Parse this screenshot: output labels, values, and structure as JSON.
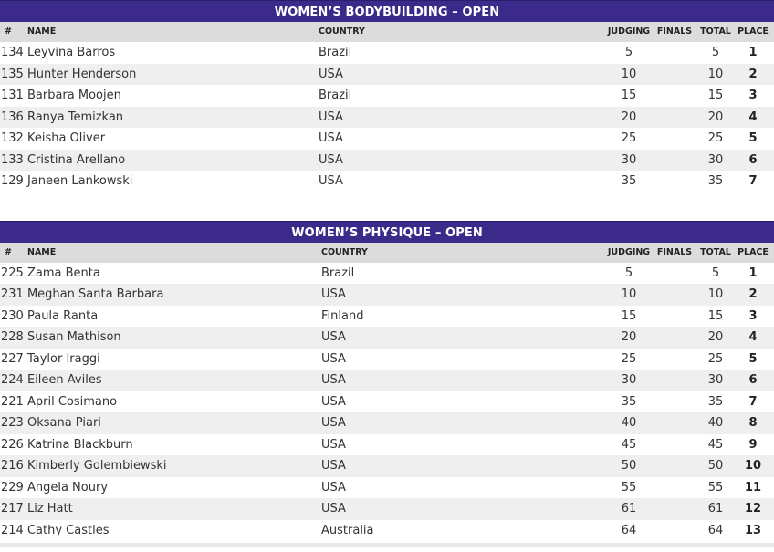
{
  "columns": {
    "num": "#",
    "name": "NAME",
    "country": "COUNTRY",
    "judging": "JUDGING",
    "finals": "FINALS",
    "total": "TOTAL",
    "place": "PLACE"
  },
  "sections": [
    {
      "title": "WOMEN’S BODYBUILDING – OPEN",
      "rows": [
        {
          "num": "134",
          "name": "Leyvina Barros",
          "country": "Brazil",
          "judging": "5",
          "finals": "",
          "total": "5",
          "place": "1"
        },
        {
          "num": "135",
          "name": "Hunter Henderson",
          "country": "USA",
          "judging": "10",
          "finals": "",
          "total": "10",
          "place": "2"
        },
        {
          "num": "131",
          "name": "Barbara Moojen",
          "country": "Brazil",
          "judging": "15",
          "finals": "",
          "total": "15",
          "place": "3"
        },
        {
          "num": "136",
          "name": "Ranya Temizkan",
          "country": "USA",
          "judging": "20",
          "finals": "",
          "total": "20",
          "place": "4"
        },
        {
          "num": "132",
          "name": "Keisha Oliver",
          "country": "USA",
          "judging": "25",
          "finals": "",
          "total": "25",
          "place": "5"
        },
        {
          "num": "133",
          "name": "Cristina Arellano",
          "country": "USA",
          "judging": "30",
          "finals": "",
          "total": "30",
          "place": "6"
        },
        {
          "num": "129",
          "name": "Janeen Lankowski",
          "country": "USA",
          "judging": "35",
          "finals": "",
          "total": "35",
          "place": "7"
        }
      ]
    },
    {
      "title": "WOMEN’S PHYSIQUE – OPEN",
      "rows": [
        {
          "num": "225",
          "name": "Zama Benta",
          "country": "Brazil",
          "judging": "5",
          "finals": "",
          "total": "5",
          "place": "1"
        },
        {
          "num": "231",
          "name": "Meghan Santa Barbara",
          "country": "USA",
          "judging": "10",
          "finals": "",
          "total": "10",
          "place": "2"
        },
        {
          "num": "230",
          "name": "Paula Ranta",
          "country": "Finland",
          "judging": "15",
          "finals": "",
          "total": "15",
          "place": "3"
        },
        {
          "num": "228",
          "name": "Susan Mathison",
          "country": "USA",
          "judging": "20",
          "finals": "",
          "total": "20",
          "place": "4"
        },
        {
          "num": "227",
          "name": "Taylor Iraggi",
          "country": "USA",
          "judging": "25",
          "finals": "",
          "total": "25",
          "place": "5"
        },
        {
          "num": "224",
          "name": "Eileen Aviles",
          "country": "USA",
          "judging": "30",
          "finals": "",
          "total": "30",
          "place": "6"
        },
        {
          "num": "221",
          "name": "April Cosimano",
          "country": "USA",
          "judging": "35",
          "finals": "",
          "total": "35",
          "place": "7"
        },
        {
          "num": "223",
          "name": "Oksana Piari",
          "country": "USA",
          "judging": "40",
          "finals": "",
          "total": "40",
          "place": "8"
        },
        {
          "num": "226",
          "name": "Katrina Blackburn",
          "country": "USA",
          "judging": "45",
          "finals": "",
          "total": "45",
          "place": "9"
        },
        {
          "num": "216",
          "name": "Kimberly Golembiewski",
          "country": "USA",
          "judging": "50",
          "finals": "",
          "total": "50",
          "place": "10"
        },
        {
          "num": "229",
          "name": "Angela Noury",
          "country": "USA",
          "judging": "55",
          "finals": "",
          "total": "55",
          "place": "11"
        },
        {
          "num": "217",
          "name": "Liz Hatt",
          "country": "USA",
          "judging": "61",
          "finals": "",
          "total": "61",
          "place": "12"
        },
        {
          "num": "214",
          "name": "Cathy Castles",
          "country": "Australia",
          "judging": "64",
          "finals": "",
          "total": "64",
          "place": "13"
        }
      ]
    }
  ]
}
